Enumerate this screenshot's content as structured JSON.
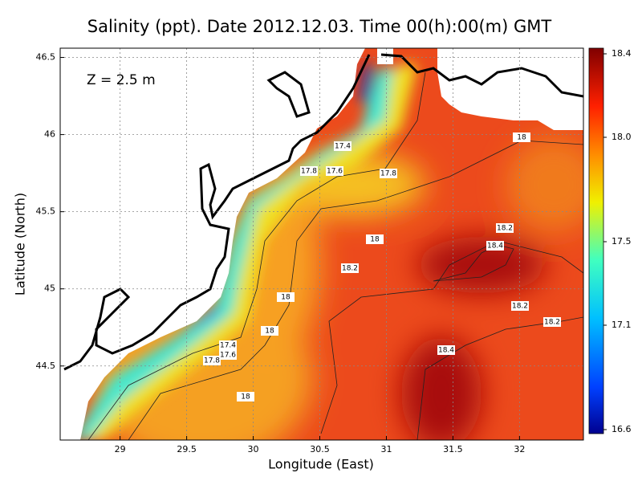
{
  "chart_data": {
    "type": "map",
    "title": "Salinity (ppt). Date 2012.12.03. Time 00(h):00(m) GMT",
    "annotation": "Z = 2.5 m",
    "x_label": "Longitude (East)",
    "y_label": "Latitude (North)",
    "xlim": [
      28.55,
      32.48
    ],
    "ylim": [
      44.02,
      46.56
    ],
    "xticks": [
      29,
      29.5,
      30,
      30.5,
      31,
      31.5,
      32
    ],
    "yticks": [
      44.5,
      45,
      45.5,
      46,
      46.5
    ],
    "grid": true,
    "colorbar": {
      "lim": [
        16.6,
        18.4
      ],
      "ticks": [
        16.6,
        17.1,
        17.5,
        {
          "value": 18,
          "label": "18.0"
        },
        18.4
      ]
    },
    "contour_labels": [
      17.4,
      17.8,
      17.6,
      17.8,
      18,
      18.2,
      18,
      18.4,
      18.2,
      18,
      18.2,
      18.2,
      18,
      17.4,
      17.6,
      17.8,
      18.4,
      18
    ]
  }
}
